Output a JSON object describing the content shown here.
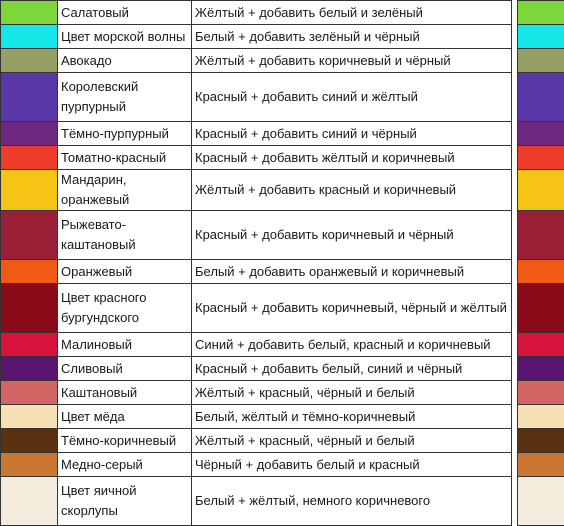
{
  "rows": [
    {
      "name": "Салатовый",
      "recipe": "Жёлтый + добавить белый и зелёный",
      "color": "#7dd63a"
    },
    {
      "name": "Цвет морской волны",
      "recipe": "Белый + добавить зелёный и чёрный",
      "color": "#14e8e8"
    },
    {
      "name": "Авокадо",
      "recipe": "Жёлтый + добавить коричневый и чёрный",
      "color": "#96a064"
    },
    {
      "name": "Королевский пурпурный",
      "recipe": "Красный + добавить синий и жёлтый",
      "color": "#5a37a8"
    },
    {
      "name": "Тёмно-пурпурный",
      "recipe": "Красный + добавить синий и чёрный",
      "color": "#6e2880"
    },
    {
      "name": "Томатно-красный",
      "recipe": "Красный + добавить жёлтый и коричневый",
      "color": "#ee3c2a"
    },
    {
      "name": "Мандарин, оранжевый",
      "recipe": "Жёлтый + добавить красный и коричневый",
      "color": "#f6c414"
    },
    {
      "name": "Рыжевато-каштановый",
      "recipe": "Красный + добавить коричневый и чёрный",
      "color": "#9a2038"
    },
    {
      "name": "Оранжевый",
      "recipe": "Белый + добавить оранжевый и коричневый",
      "color": "#f05a14"
    },
    {
      "name": "Цвет красного бургундского",
      "recipe": "Красный + добавить коричневый, чёрный и жёлтый",
      "color": "#8a0a1a"
    },
    {
      "name": "Малиновый",
      "recipe": "Синий + добавить белый, красный и коричневый",
      "color": "#d8143c"
    },
    {
      "name": "Сливовый",
      "recipe": "Красный + добавить белый, синий и чёрный",
      "color": "#5a1470"
    },
    {
      "name": "Каштановый",
      "recipe": "Жёлтый + красный, чёрный и белый",
      "color": "#d26464"
    },
    {
      "name": "Цвет мёда",
      "recipe": "Белый, жёлтый и тёмно-коричневый",
      "color": "#f6e0b4"
    },
    {
      "name": "Тёмно-коричневый",
      "recipe": "Жёлтый + красный, чёрный и белый",
      "color": "#5a3212"
    },
    {
      "name": "Медно-серый",
      "recipe": "Чёрный + добавить белый и красный",
      "color": "#c87832"
    },
    {
      "name": "Цвет яичной скорлупы",
      "recipe": "Белый + жёлтый, немного коричневого",
      "color": "#f4ecdc"
    }
  ]
}
